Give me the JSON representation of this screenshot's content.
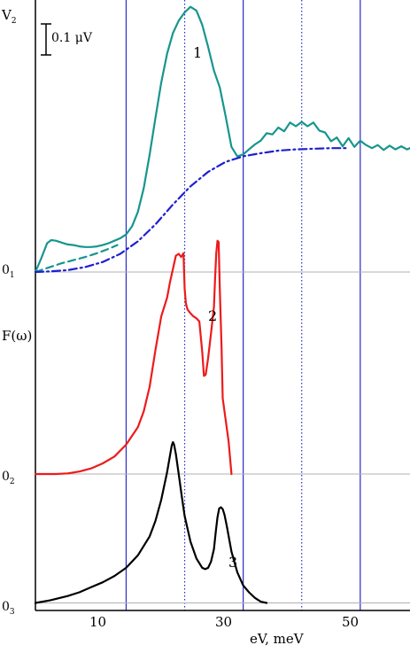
{
  "chart_data": {
    "type": "line",
    "title": "",
    "xlabel": "eV, meV",
    "xlim": [
      -5.5,
      58.5
    ],
    "x_ticks": [
      10,
      30,
      50
    ],
    "x_tick_labels": [
      "10",
      "30",
      "50"
    ],
    "solid_gridlines_x": [
      10,
      30,
      50
    ],
    "dotted_gridlines_x": [
      20,
      40
    ],
    "left_labels": {
      "v2_main": "V",
      "v2_sub": "2",
      "f_omega": "F(ω)",
      "zero_main": "0",
      "zero1_sub": "1",
      "zero2_sub": "2",
      "zero3_sub": "3"
    },
    "scale_bar_label": "0.1 μV",
    "curve_labels": [
      "1",
      "2",
      "3"
    ],
    "colors": {
      "teal": "#17958e",
      "blue": "#1f1fd1",
      "red": "#ee1a1a",
      "black": "#000000",
      "grid_blue": "#2a2ac4",
      "baseline": "#b0b0b0"
    },
    "baselines": [
      {
        "name": "0_1",
        "y_units": 0
      },
      {
        "name": "0_2",
        "y_units": -32.3
      },
      {
        "name": "0_3",
        "y_units": -52.9
      }
    ],
    "series": [
      {
        "id": "curve-1",
        "label": "1",
        "color": "#17958e",
        "style": "solid",
        "x": [
          -5.5,
          -4.5,
          -3.5,
          -2.8,
          -2,
          -1,
          0,
          1,
          2,
          3,
          4,
          5,
          6,
          7,
          8,
          9,
          10,
          11,
          12,
          13,
          14,
          15,
          16,
          17,
          18,
          19,
          20,
          21,
          22,
          23,
          24,
          25,
          26,
          27,
          28,
          29,
          30,
          31,
          32,
          33,
          34,
          35,
          36,
          37,
          38,
          39,
          40,
          41,
          42,
          43,
          44,
          45,
          46,
          47,
          48,
          49,
          50,
          51,
          52,
          53,
          54,
          55,
          56,
          57,
          58,
          58.5
        ],
        "y": [
          0,
          2.2,
          4.6,
          5.1,
          5.0,
          4.7,
          4.4,
          4.3,
          4.1,
          4.0,
          4.0,
          4.1,
          4.3,
          4.6,
          5.0,
          5.4,
          6.0,
          7.3,
          9.6,
          13.4,
          18.7,
          24.6,
          30.3,
          34.9,
          38.2,
          40.2,
          41.5,
          42.4,
          41.8,
          39.5,
          36.0,
          32.2,
          29.5,
          24.9,
          20.0,
          18.5,
          18.8,
          19.6,
          20.4,
          21.0,
          22.2,
          22.0,
          23.1,
          22.5,
          23.9,
          23.3,
          24.0,
          23.3,
          23.9,
          22.6,
          22.3,
          20.9,
          21.5,
          20.1,
          21.4,
          20.0,
          21.0,
          20.3,
          19.8,
          20.3,
          19.5,
          20.2,
          19.6,
          20.1,
          19.6,
          19.8
        ]
      },
      {
        "id": "curve-1-dashed",
        "label": "",
        "color": "#17958e",
        "style": "dashed",
        "x": [
          -5.5,
          -3,
          -1,
          1,
          3,
          5,
          7,
          8.5
        ],
        "y": [
          0,
          0.8,
          1.4,
          1.9,
          2.4,
          3.0,
          3.7,
          4.3
        ]
      },
      {
        "id": "curve-1-background",
        "label": "",
        "color": "#1f1fd1",
        "style": "dashdot",
        "x": [
          -5.5,
          -3,
          0,
          3,
          6,
          9,
          12,
          15,
          18,
          21,
          24,
          27,
          30,
          33,
          36,
          39,
          42,
          45,
          48
        ],
        "y": [
          0,
          0.1,
          0.3,
          0.8,
          1.6,
          2.9,
          4.9,
          7.6,
          10.8,
          13.7,
          16.0,
          17.6,
          18.5,
          19.0,
          19.4,
          19.6,
          19.7,
          19.8,
          19.8
        ]
      },
      {
        "id": "curve-2",
        "label": "2",
        "color": "#ee1a1a",
        "style": "solid",
        "x": [
          -5.5,
          -2,
          0,
          2,
          4,
          6,
          8,
          10,
          12,
          13,
          14,
          15,
          16,
          17,
          17.5,
          18,
          18.5,
          19,
          19.4,
          19.8,
          20,
          20.2,
          20.5,
          21,
          21.5,
          22,
          22.5,
          23,
          23.3,
          23.6,
          24,
          24.5,
          25,
          25.2,
          25.4,
          25.6,
          25.8,
          26,
          26.3,
          26.5,
          27,
          27.5,
          28
        ],
        "y": [
          -32.3,
          -32.3,
          -32.2,
          -31.9,
          -31.4,
          -30.6,
          -29.5,
          -27.6,
          -24.8,
          -22.3,
          -18.4,
          -12.5,
          -7.1,
          -4.1,
          -1.6,
          0.5,
          2.6,
          2.9,
          2.4,
          3.0,
          -2.6,
          -5.0,
          -6.0,
          -6.6,
          -7.1,
          -7.4,
          -7.9,
          -12.8,
          -16.6,
          -16.4,
          -13.8,
          -9.8,
          -5.6,
          -1.0,
          3.0,
          5.0,
          4.8,
          -2.6,
          -12.1,
          -20.2,
          -23.6,
          -27.0,
          -32.3
        ]
      },
      {
        "id": "curve-3",
        "label": "3",
        "color": "#000000",
        "style": "solid",
        "x": [
          -5.5,
          -3,
          0,
          2,
          4,
          6,
          8,
          10,
          12,
          14,
          15,
          16,
          17,
          17.5,
          17.8,
          18,
          18.2,
          18.5,
          19,
          19.5,
          20,
          21,
          22,
          23,
          23.5,
          24,
          24.5,
          25,
          25.3,
          25.6,
          25.9,
          26.2,
          26.5,
          26.8,
          27.2,
          28,
          29,
          30,
          31,
          32,
          33,
          34
        ],
        "y": [
          -52.9,
          -52.5,
          -51.8,
          -51.2,
          -50.4,
          -49.6,
          -48.6,
          -47.3,
          -45.3,
          -42.3,
          -39.8,
          -36.4,
          -32.0,
          -29.3,
          -27.7,
          -27.2,
          -27.6,
          -29.1,
          -32.4,
          -35.8,
          -39.0,
          -43.1,
          -45.8,
          -47.3,
          -47.5,
          -47.3,
          -46.3,
          -44.3,
          -41.6,
          -39.2,
          -37.8,
          -37.6,
          -37.9,
          -38.8,
          -40.6,
          -44.7,
          -48.0,
          -50.1,
          -51.2,
          -52.1,
          -52.7,
          -52.9
        ]
      }
    ]
  }
}
